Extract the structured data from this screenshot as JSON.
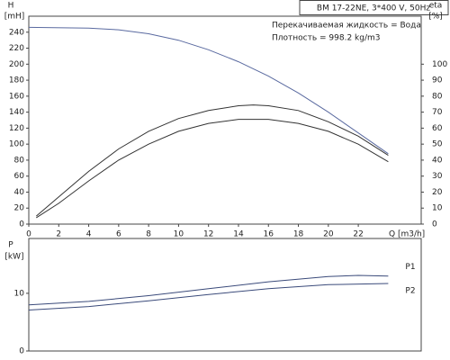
{
  "chart_data": [
    {
      "type": "line",
      "title": "BM 17-22NE, 3*400 V, 50Hz",
      "annotations": [
        "Перекачиваемая жидкость = Вода",
        "Плотность = 998.2 kg/m3"
      ],
      "y_label": "H",
      "y_unit": "[mH]",
      "y2_label": "eta",
      "y2_unit": "[%]",
      "x_label": "Q [m3/h]",
      "xlim": [
        0,
        26.2
      ],
      "xticks": [
        0,
        2,
        4,
        6,
        8,
        10,
        12,
        14,
        16,
        18,
        20,
        22
      ],
      "ylim": [
        0,
        260
      ],
      "yticks": [
        0,
        20,
        40,
        60,
        80,
        100,
        120,
        140,
        160,
        180,
        200,
        220,
        240
      ],
      "y2lim": [
        0,
        130
      ],
      "y2ticks": [
        0,
        10,
        20,
        30,
        40,
        50,
        60,
        70,
        80,
        90,
        100
      ],
      "series": [
        {
          "color": "#5a6aa0",
          "x": [
            0,
            4,
            6,
            8,
            10,
            12,
            14,
            16,
            18,
            20,
            22,
            24
          ],
          "values": [
            246,
            245,
            243,
            238,
            230,
            218,
            203,
            185,
            164,
            140,
            114,
            88
          ]
        },
        {
          "color": "#333333",
          "axis": "y2",
          "x": [
            0.5,
            2,
            4,
            6,
            8,
            10,
            12,
            14,
            15,
            16,
            18,
            20,
            22,
            24
          ],
          "values": [
            5,
            17,
            33,
            47,
            58,
            66,
            71,
            74,
            74.5,
            74,
            71,
            64,
            55,
            43
          ]
        },
        {
          "color": "#333333",
          "axis": "y2",
          "x": [
            0.5,
            2,
            4,
            6,
            8,
            10,
            12,
            14,
            16,
            18,
            20,
            22,
            24
          ],
          "values": [
            4,
            13,
            27,
            40,
            50,
            58,
            63,
            65.5,
            65.5,
            63,
            58,
            50,
            39
          ]
        }
      ]
    },
    {
      "type": "line",
      "y_label": "P",
      "y_unit": "[kW]",
      "xlim": [
        0,
        26.2
      ],
      "ylim": [
        0,
        19.5
      ],
      "yticks": [
        0,
        10
      ],
      "series": [
        {
          "name": "P1",
          "color": "#3a4a7a",
          "x": [
            0,
            4,
            8,
            12,
            16,
            20,
            22,
            24
          ],
          "values": [
            8.0,
            8.6,
            9.6,
            10.8,
            12.0,
            12.9,
            13.1,
            13.0
          ]
        },
        {
          "name": "P2",
          "color": "#3a4a7a",
          "x": [
            0,
            4,
            8,
            12,
            16,
            20,
            24
          ],
          "values": [
            7.1,
            7.7,
            8.7,
            9.8,
            10.8,
            11.5,
            11.7
          ]
        }
      ]
    }
  ]
}
